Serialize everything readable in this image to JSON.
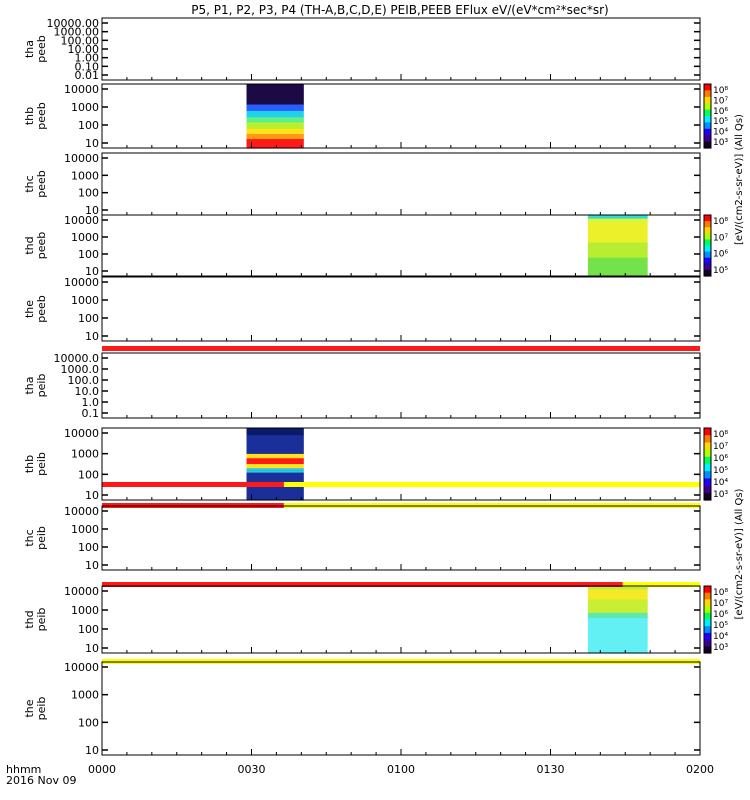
{
  "chart_data": {
    "type": "heatmap",
    "title": "P5, P1, P2, P3, P4 (TH-A,B,C,D,E) PEIB,PEEB EFlux eV/(eV*cm²*sec*sr)",
    "x_range_minutes": [
      0,
      120
    ],
    "x_ticks": [
      {
        "t": 0,
        "label": "0000"
      },
      {
        "t": 30,
        "label": "0030"
      },
      {
        "t": 60,
        "label": "0100"
      },
      {
        "t": 90,
        "label": "0130"
      },
      {
        "t": 120,
        "label": "0200"
      }
    ],
    "x_label_line1": "hhmm",
    "x_label_line2": "2016 Nov 09",
    "panels": [
      {
        "id": "tha-peeb",
        "label1": "tha",
        "label2": "peeb",
        "yticks": [
          "10000.00",
          "1000.00",
          "100.00",
          "10.00",
          "1.00",
          "0.10",
          "0.01"
        ],
        "spectra": [],
        "colorbar": null
      },
      {
        "id": "thb-peeb",
        "label1": "thb",
        "label2": "peeb",
        "yticks": [
          "10000",
          "1000",
          "100",
          "10"
        ],
        "spectra": [
          {
            "t0": 29,
            "t1": 40.5,
            "scheme": "peeb_b"
          }
        ],
        "colorbar": {
          "ticks": [
            "10⁸",
            "10⁷",
            "10⁶",
            "10⁵",
            "10⁴",
            "10³"
          ]
        }
      },
      {
        "id": "thc-peeb",
        "label1": "thc",
        "label2": "peeb",
        "yticks": [
          "10000",
          "1000",
          "100",
          "10"
        ],
        "spectra": [],
        "colorbar": null
      },
      {
        "id": "thd-peeb",
        "label1": "thd",
        "label2": "peeb",
        "yticks": [
          "10000",
          "1000",
          "100",
          "10"
        ],
        "spectra": [
          {
            "t0": 97.5,
            "t1": 109.5,
            "scheme": "peeb_d"
          }
        ],
        "colorbar": {
          "ticks": [
            "10⁸",
            "10⁷",
            "10⁶",
            "10⁵"
          ]
        }
      },
      {
        "id": "the-peeb",
        "label1": "the",
        "label2": "peeb",
        "yticks": [
          "10000",
          "1000",
          "100",
          "10"
        ],
        "spectra": [],
        "colorbar": null
      },
      {
        "id": "tha-peib",
        "label1": "tha",
        "label2": "peib",
        "yticks": [
          "10000.0",
          "1000.0",
          "100.0",
          "10.0",
          "1.0",
          "0.1"
        ],
        "spectra": [],
        "colorbar": null
      },
      {
        "id": "thb-peib",
        "label1": "thb",
        "label2": "peib",
        "yticks": [
          "10000",
          "1000",
          "100",
          "10"
        ],
        "spectra": [
          {
            "t0": 29,
            "t1": 40.5,
            "scheme": "peib_b"
          }
        ],
        "colorbar": {
          "ticks": [
            "10⁸",
            "10⁷",
            "10⁶",
            "10⁵",
            "10⁴",
            "10³"
          ]
        }
      },
      {
        "id": "thc-peib",
        "label1": "thc",
        "label2": "peib",
        "yticks": [
          "10000",
          "1000",
          "100",
          "10"
        ],
        "spectra": [],
        "colorbar": null
      },
      {
        "id": "thd-peib",
        "label1": "thd",
        "label2": "peib",
        "yticks": [
          "10000",
          "1000",
          "100",
          "10"
        ],
        "spectra": [
          {
            "t0": 97.5,
            "t1": 109.5,
            "scheme": "peib_d"
          }
        ],
        "colorbar": {
          "ticks": [
            "10⁸",
            "10⁷",
            "10⁶",
            "10⁵",
            "10⁴",
            "10³"
          ]
        }
      },
      {
        "id": "the-peib",
        "label1": "the",
        "label2": "peib",
        "yticks": [
          "10000",
          "1000",
          "100",
          "10"
        ],
        "spectra": [],
        "colorbar": null
      }
    ],
    "mode_bars": [
      {
        "after_panel": 4,
        "segments": [
          {
            "t0": 0,
            "t1": 120,
            "color": "#ff1a1a"
          }
        ]
      },
      {
        "after_panel": 5,
        "segments": [
          {
            "t0": 0,
            "t1": 36.5,
            "color": "#ff1a1a"
          },
          {
            "t0": 36.5,
            "t1": 120,
            "color": "#ffff00"
          }
        ]
      },
      {
        "after_panel": 6,
        "segments": [
          {
            "t0": 0,
            "t1": 36.5,
            "color": "#ff1a1a"
          },
          {
            "t0": 36.5,
            "t1": 120,
            "color": "#ffff00"
          }
        ]
      },
      {
        "after_panel": 7,
        "segments": [
          {
            "t0": 0,
            "t1": 104.5,
            "color": "#ff1a1a"
          },
          {
            "t0": 104.5,
            "t1": 120,
            "color": "#ffff00"
          }
        ]
      },
      {
        "after_panel": 8,
        "segments": [
          {
            "t0": 0,
            "t1": 120,
            "color": "#ffff00"
          }
        ]
      }
    ],
    "colorbar_titles": [
      {
        "text": "[eV/(cm2-s-sr-eV)] (All Qs)",
        "panel_from": 0,
        "panel_to": 4,
        "garbled_overlap": true
      },
      {
        "text": "[eV/(cm2-s-sr-eV)] (All Qs)",
        "panel_from": 5,
        "panel_to": 9,
        "garbled_overlap": true
      }
    ]
  }
}
